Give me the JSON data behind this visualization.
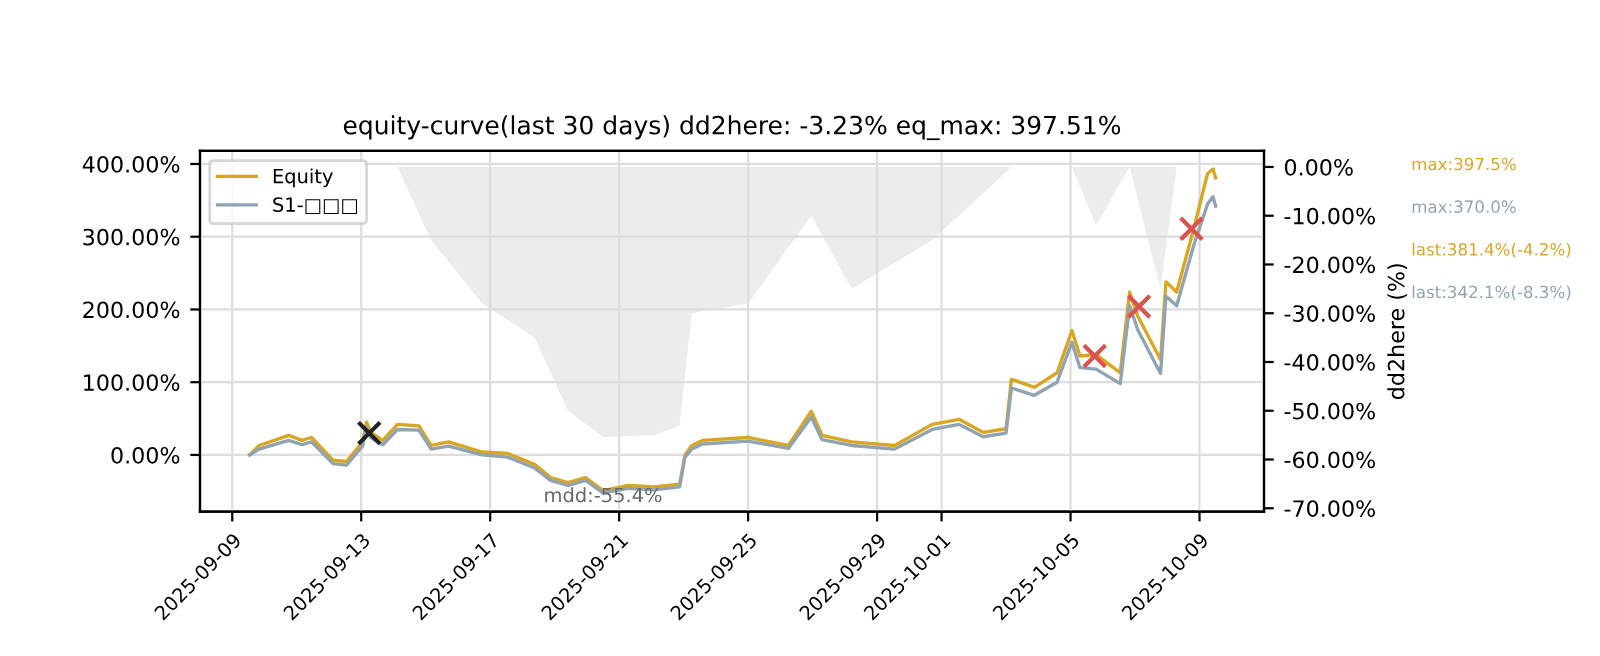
{
  "chart_data": {
    "type": "line",
    "title": "equity-curve(last 30 days) dd2here: -3.23% eq_max: 397.51%",
    "y2label": "dd2here (%)",
    "x": [
      "2025-09-09T13:00",
      "2025-09-09T20:00",
      "2025-09-10T18:00",
      "2025-09-11T04:00",
      "2025-09-11T11:00",
      "2025-09-12T03:00",
      "2025-09-12T13:00",
      "2025-09-13T01:00",
      "2025-09-13T04:00",
      "2025-09-13T07:00",
      "2025-09-13T16:00",
      "2025-09-14T03:00",
      "2025-09-14T19:00",
      "2025-09-15T04:00",
      "2025-09-15T17:00",
      "2025-09-16T18:00",
      "2025-09-17T13:00",
      "2025-09-18T09:00",
      "2025-09-18T21:00",
      "2025-09-19T10:00",
      "2025-09-19T23:00",
      "2025-09-20T12:00",
      "2025-09-21T07:00",
      "2025-09-22T02:00",
      "2025-09-22T21:00",
      "2025-09-23T01:00",
      "2025-09-23T06:00",
      "2025-09-23T14:00",
      "2025-09-25T00:00",
      "2025-09-26T06:00",
      "2025-09-26T23:00",
      "2025-09-27T07:00",
      "2025-09-28T05:00",
      "2025-09-29T13:00",
      "2025-09-30T17:00",
      "2025-10-01T13:00",
      "2025-10-02T07:00",
      "2025-10-03T00:00",
      "2025-10-03T04:00",
      "2025-10-03T21:00",
      "2025-10-04T14:00",
      "2025-10-05T01:00",
      "2025-10-05T07:00",
      "2025-10-05T19:00",
      "2025-10-06T13:00",
      "2025-10-06T20:00",
      "2025-10-07T02:00",
      "2025-10-07T19:00",
      "2025-10-07T23:00",
      "2025-10-08T07:00",
      "2025-10-08T20:00",
      "2025-10-09T06:00",
      "2025-10-09T10:00",
      "2025-10-09T12:00"
    ],
    "series": [
      {
        "name": "Equity",
        "color": "#daa520",
        "values": [
          0,
          13,
          27,
          20,
          24,
          -7,
          -9,
          18,
          45,
          31,
          20,
          42,
          40,
          13,
          18,
          4,
          2,
          -13,
          -31,
          -38,
          -31,
          -49,
          -42,
          -44,
          -40,
          0,
          13,
          20,
          24,
          13,
          60,
          27,
          18,
          13,
          42,
          49,
          31,
          36,
          104,
          93,
          113,
          171,
          136,
          138,
          113,
          224,
          191,
          131,
          238,
          224,
          313,
          387,
          393,
          381
        ]
      },
      {
        "name": "S1-□□□",
        "color": "#8fa3b3",
        "values": [
          0,
          8,
          20,
          14,
          18,
          -12,
          -14,
          12,
          38,
          24,
          14,
          35,
          34,
          8,
          12,
          0,
          -3,
          -18,
          -35,
          -42,
          -35,
          -52,
          -46,
          -48,
          -44,
          -3,
          8,
          15,
          19,
          9,
          52,
          21,
          13,
          8,
          35,
          42,
          25,
          30,
          92,
          82,
          100,
          155,
          120,
          118,
          98,
          205,
          172,
          112,
          218,
          205,
          290,
          345,
          355,
          342
        ]
      },
      {
        "type": "area",
        "axis": "y2",
        "color": "#ececec",
        "x": [
          "2025-09-13T07:00",
          "2025-09-14T03:00",
          "2025-09-15T04:00",
          "2025-09-16T18:00",
          "2025-09-18T09:00",
          "2025-09-19T10:00",
          "2025-09-20T12:00",
          "2025-09-22T02:00",
          "2025-09-22T21:00",
          "2025-09-23T06:00",
          "2025-09-25T00:00",
          "2025-09-26T23:00",
          "2025-09-28T05:00",
          "2025-09-30T17:00",
          "2025-10-01T13:00",
          "2025-10-03T04:00",
          "2025-10-04T14:00",
          "2025-10-05T01:00",
          "2025-10-05T19:00",
          "2025-10-06T20:00",
          "2025-10-07T19:00",
          "2025-10-08T07:00",
          "2025-10-09T10:00",
          "2025-10-09T12:00"
        ],
        "values": [
          0,
          0,
          -15,
          -28,
          -35,
          -50,
          -55.4,
          -55,
          -53,
          -30,
          -28,
          -10,
          -25,
          -15,
          -10,
          0,
          0,
          0,
          -12,
          0,
          -25,
          0,
          0,
          -3
        ]
      },
      {
        "type": "scatter",
        "marker": "cross",
        "color": "#d9534f",
        "x": [
          "2025-10-05T18:00",
          "2025-10-07T03:00",
          "2025-10-08T18:00"
        ],
        "values": [
          136,
          204,
          311
        ]
      },
      {
        "type": "scatter",
        "marker": "cross",
        "color": "#222222",
        "x": [
          "2025-09-13T06:00"
        ],
        "values": [
          30
        ]
      }
    ],
    "xlim": [
      "2025-09-08T00:00",
      "2025-10-11T00:00"
    ],
    "xticks": [
      {
        "value": "2025-09-09",
        "label": "2025-09-09"
      },
      {
        "value": "2025-09-13",
        "label": "2025-09-13"
      },
      {
        "value": "2025-09-17",
        "label": "2025-09-17"
      },
      {
        "value": "2025-09-21",
        "label": "2025-09-21"
      },
      {
        "value": "2025-09-25",
        "label": "2025-09-25"
      },
      {
        "value": "2025-09-29",
        "label": "2025-09-29"
      },
      {
        "value": "2025-10-01",
        "label": "2025-10-01"
      },
      {
        "value": "2025-10-05",
        "label": "2025-10-05"
      },
      {
        "value": "2025-10-09",
        "label": "2025-10-09"
      }
    ],
    "ylim": [
      -78,
      418
    ],
    "yticks": [
      {
        "value": 0,
        "label": "0.00%"
      },
      {
        "value": 100,
        "label": "100.00%"
      },
      {
        "value": 200,
        "label": "200.00%"
      },
      {
        "value": 300,
        "label": "300.00%"
      },
      {
        "value": 400,
        "label": "400.00%"
      }
    ],
    "y2lim": [
      -70.7,
      3.3
    ],
    "y2ticks": [
      {
        "value": 0,
        "label": "0.00%"
      },
      {
        "value": -10,
        "label": "-10.00%"
      },
      {
        "value": -20,
        "label": "-20.00%"
      },
      {
        "value": -30,
        "label": "-30.00%"
      },
      {
        "value": -40,
        "label": "-40.00%"
      },
      {
        "value": -50,
        "label": "-50.00%"
      },
      {
        "value": -60,
        "label": "-60.00%"
      },
      {
        "value": -70,
        "label": "-70.00%"
      }
    ],
    "annotations": [
      "max:397.5%",
      "max:370.0%",
      "last:381.4%(-4.2%)",
      "last:342.1%(-8.3%)",
      {
        "text": "mdd:-55.4%",
        "x": "2025-09-20T12:00"
      }
    ],
    "grid": true,
    "legend": "top left",
    "line_style": "solid",
    "marker": "none"
  }
}
